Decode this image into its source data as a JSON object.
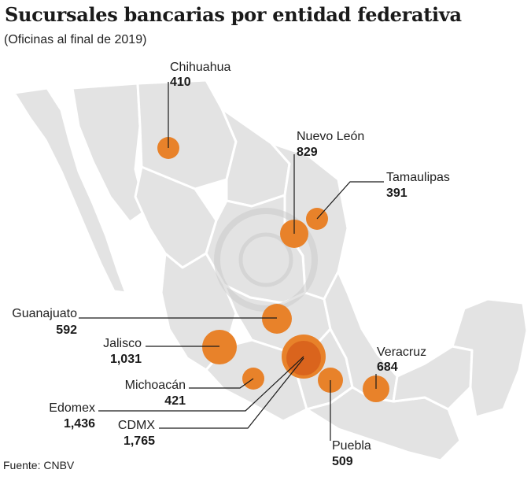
{
  "title": "Sucursales bancarias por entidad federativa",
  "subtitle": "(Oficinas al final de 2019)",
  "source": "Fuente: CNBV",
  "colors": {
    "bubble": "#e8822a",
    "bubble_inner": "#d8611c",
    "map_land": "#e3e3e3",
    "map_border": "#ffffff",
    "leader": "#1a1a1a"
  },
  "states": [
    {
      "name": "Chihuahua",
      "value": "410"
    },
    {
      "name": "Nuevo León",
      "value": "829"
    },
    {
      "name": "Tamaulipas",
      "value": "391"
    },
    {
      "name": "Guanajuato",
      "value": "592"
    },
    {
      "name": "Jalisco",
      "value": "1,031"
    },
    {
      "name": "Michoacán",
      "value": "421"
    },
    {
      "name": "Edomex",
      "value": "1,436"
    },
    {
      "name": "CDMX",
      "value": "1,765"
    },
    {
      "name": "Veracruz",
      "value": "684"
    },
    {
      "name": "Puebla",
      "value": "509"
    }
  ]
}
